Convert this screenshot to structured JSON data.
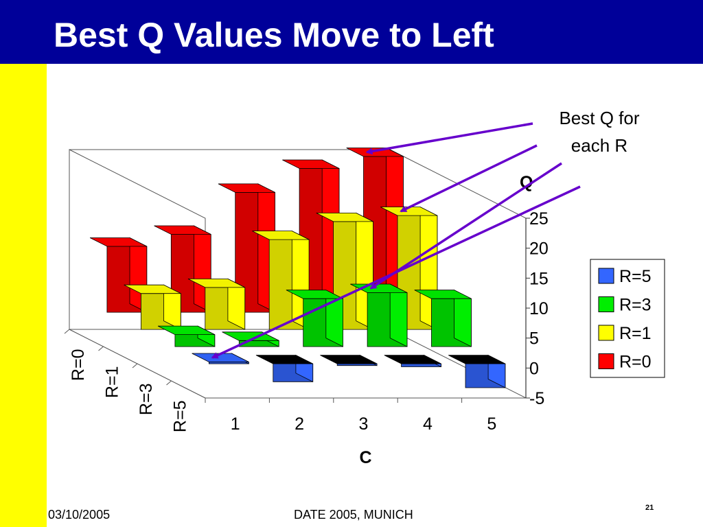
{
  "slide": {
    "title": "Best Q Values Move to Left",
    "footer_date": "03/10/2005",
    "footer_venue": "DATE 2005, MUNICH",
    "page_number": "21",
    "annotation": "Best Q for each R"
  },
  "chart_data": {
    "type": "bar",
    "subtype": "3d-bar",
    "categories": [
      "1",
      "2",
      "3",
      "4",
      "5"
    ],
    "xlabel": "C",
    "ylabel": "Q",
    "zlabel": "",
    "ylim": [
      -5,
      25
    ],
    "yticks": [
      "-5",
      "0",
      "5",
      "10",
      "15",
      "20",
      "25"
    ],
    "series": [
      {
        "name": "R=0",
        "color": "#ff0000",
        "values": [
          11,
          13,
          20,
          24,
          26
        ]
      },
      {
        "name": "R=1",
        "color": "#ffff00",
        "values": [
          6,
          7,
          15,
          18,
          19
        ]
      },
      {
        "name": "R=3",
        "color": "#00ee00",
        "values": [
          2,
          1,
          8,
          9,
          8
        ]
      },
      {
        "name": "R=5",
        "color": "#3366ff",
        "values": [
          0.3,
          -3,
          -0.3,
          -0.5,
          -4
        ]
      }
    ],
    "depth_labels": [
      "R=0",
      "R=1",
      "R=3",
      "R=5"
    ],
    "legend": {
      "position": "right",
      "order": [
        "R=5",
        "R=3",
        "R=1",
        "R=0"
      ]
    },
    "grid": false,
    "annotation": {
      "text": "Best Q for each R",
      "arrow_color": "#6600cc"
    }
  }
}
